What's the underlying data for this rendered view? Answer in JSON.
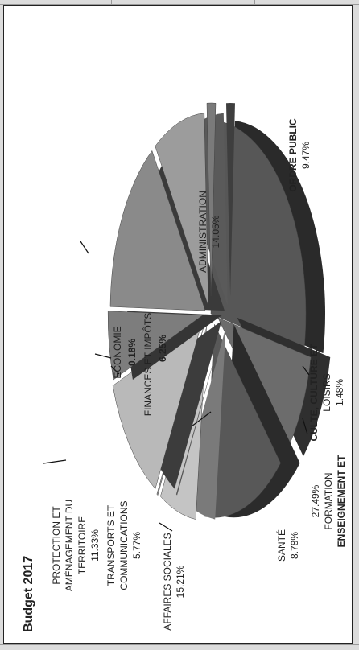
{
  "chart_data": {
    "type": "pie",
    "title": "Budget 2017",
    "slices": [
      {
        "label": "ENSEIGNEMENT ET FORMATION",
        "value": 27.49,
        "value_text": "27.49%",
        "color": "#575757",
        "dark": "#2a2a2a"
      },
      {
        "label": "ORDRE PUBLIC",
        "value": 9.47,
        "value_text": "9.47%",
        "color": "#6c6c6c",
        "dark": "#2f2f2f"
      },
      {
        "label": "ADMINISTRATION",
        "value": 14.05,
        "value_text": "14.05%",
        "color": "#585858",
        "dark": "#2b2b2b"
      },
      {
        "label": "FINANCES ET IMPÔTS",
        "value": 6.25,
        "value_text": "6.25%",
        "color": "#c4c4c4",
        "dark": "#7a7a7a"
      },
      {
        "label": "ECONOMIE",
        "value": 0.18,
        "value_text": "0.18%",
        "color": "#9a9a9a",
        "dark": "#555555"
      },
      {
        "label": "PROTECTION ET AMÉNAGEMENT DU TERRITOIRE",
        "value": 11.33,
        "value_text": "11.33%",
        "color": "#b9b9b9",
        "dark": "#3c3c3c"
      },
      {
        "label": "TRANSPORTS ET COMMUNICATIONS",
        "value": 5.77,
        "value_text": "5.77%",
        "color": "#7d7d7d",
        "dark": "#353535"
      },
      {
        "label": "AFFAIRES SOCIALES",
        "value": 15.21,
        "value_text": "15.21%",
        "color": "#8a8a8a",
        "dark": "#3a3a3a"
      },
      {
        "label": "SANTÉ",
        "value": 8.78,
        "value_text": "8.78%",
        "color": "#9c9c9c",
        "dark": "#5a5a5a"
      },
      {
        "label": "CULTE, CULTURE ET LOISIRS",
        "value": 1.48,
        "value_text": "1.48%",
        "color": "#7a7a7a",
        "dark": "#3e3e3e"
      }
    ]
  },
  "labels": {
    "title": "Budget 2017",
    "ens1": "ENSEIGNEMENT ET",
    "ens2": "FORMATION",
    "ens_pct": "27.49%",
    "ordre": "ORDRE PUBLIC",
    "ordre_pct": "9.47%",
    "admin": "ADMINISTRATION",
    "admin_pct": "14.05%",
    "fin": "FINANCES ET IMPÔTS",
    "fin_pct": "6.25%",
    "eco": "ECONOMIE",
    "eco_pct": "0.18%",
    "prot1": "PROTECTION ET",
    "prot2": "AMÉNAGEMENT DU",
    "prot3": "TERRITOIRE",
    "prot_pct": "11.33%",
    "trans1": "TRANSPORTS ET",
    "trans2": "COMMUNICATIONS",
    "trans_pct": "5.77%",
    "aff": "AFFAIRES SOCIALES",
    "aff_pct": "15.21%",
    "sante": "SANTÉ",
    "sante_pct": "8.78%",
    "culte1": "CULTE, CULTURE ET",
    "culte2": "LOISIRS",
    "culte_pct": "1.48%"
  }
}
